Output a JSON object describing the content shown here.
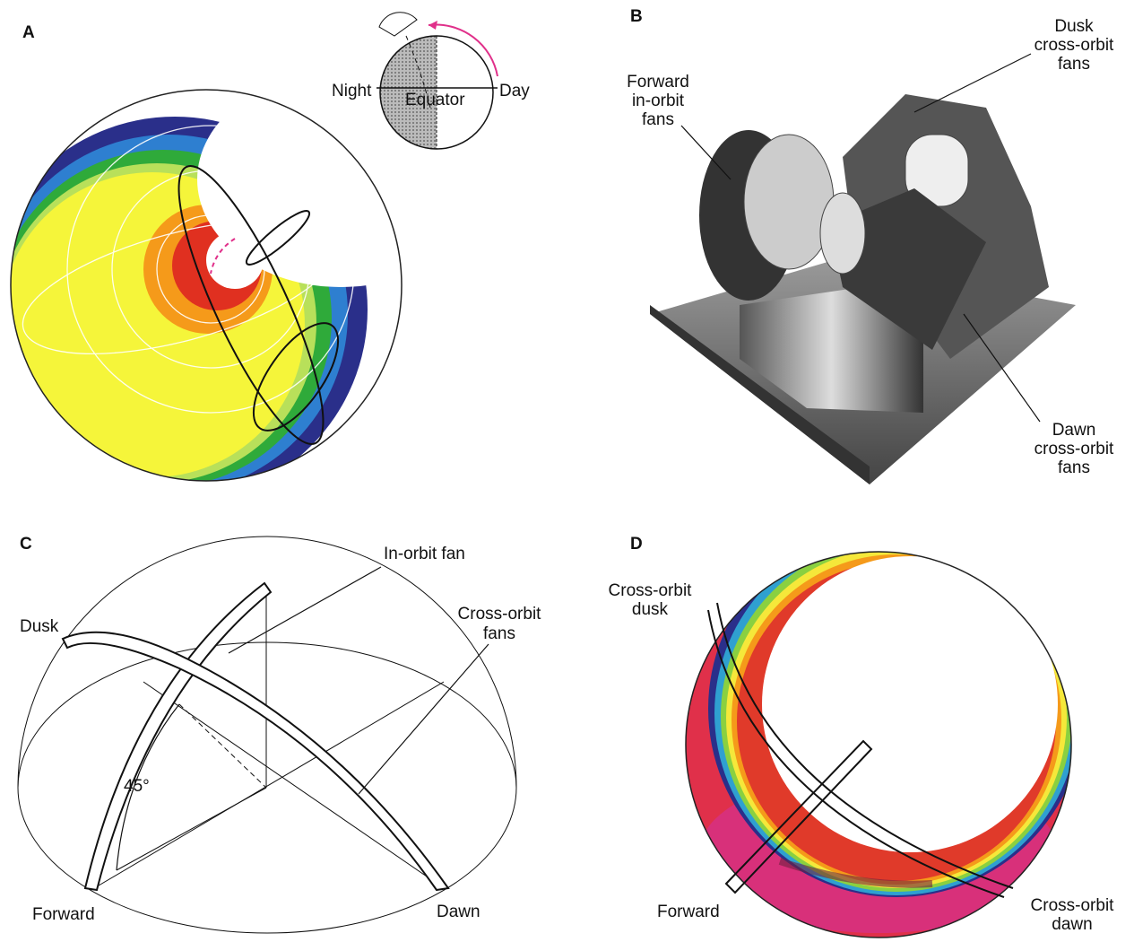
{
  "panels": [
    {
      "label": "A",
      "inset": {
        "night": "Night",
        "equator": "Equator",
        "day": "Day"
      }
    },
    {
      "label": "B",
      "callouts": [
        {
          "lines": [
            "Forward",
            "in-orbit",
            "fans"
          ]
        },
        {
          "lines": [
            "Dusk",
            "cross-orbit",
            "fans"
          ]
        },
        {
          "lines": [
            "Dawn",
            "cross-orbit",
            "fans"
          ]
        }
      ]
    },
    {
      "label": "C",
      "labels": {
        "in_orbit": "In-orbit fan",
        "cross_orbit": [
          "Cross-orbit",
          "fans"
        ],
        "dusk": "Dusk",
        "angle": "45°",
        "forward": "Forward",
        "dawn": "Dawn"
      }
    },
    {
      "label": "D",
      "labels": {
        "dusk": [
          "Cross-orbit",
          "dusk"
        ],
        "forward": "Forward",
        "dawn": [
          "Cross-orbit",
          "dawn"
        ]
      }
    }
  ]
}
